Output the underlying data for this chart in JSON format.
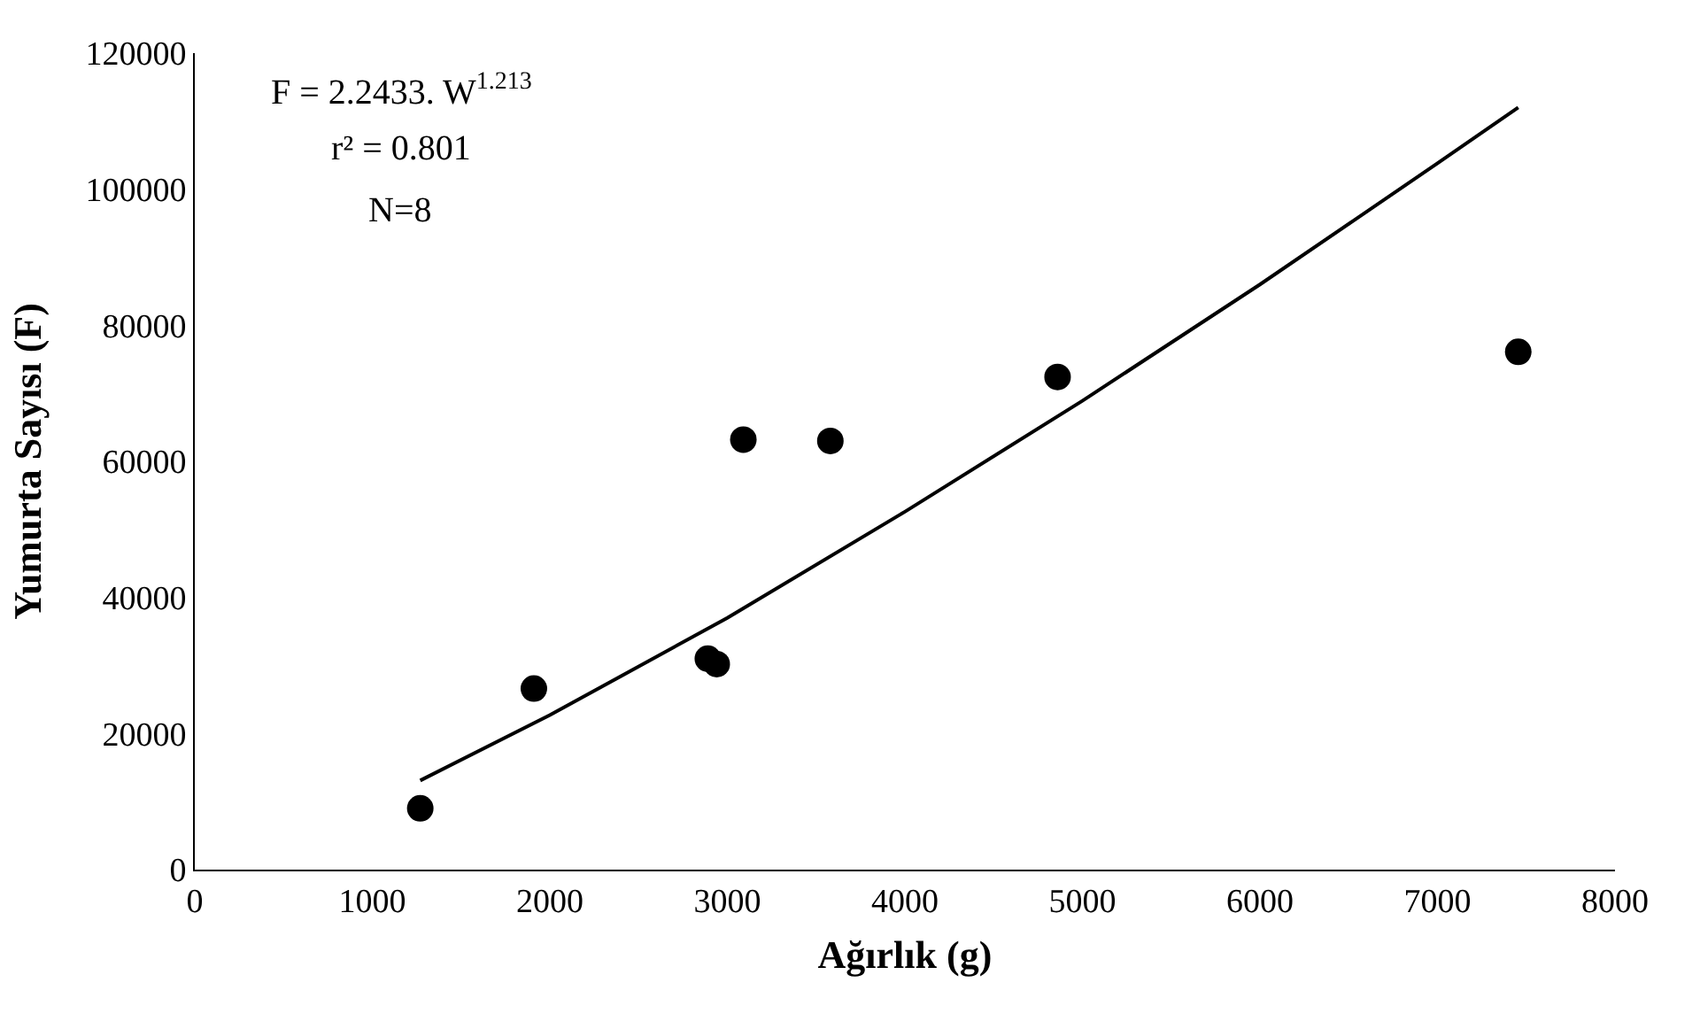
{
  "chart_data": {
    "type": "scatter",
    "xlabel": "Ağırlık (g)",
    "ylabel": "Yumurta Sayısı (F)",
    "xlim": [
      0,
      8000
    ],
    "xticks": [
      0,
      1000,
      2000,
      3000,
      4000,
      5000,
      6000,
      7000,
      8000
    ],
    "ylim": [
      0,
      120000
    ],
    "yticks": [
      0,
      20000,
      40000,
      60000,
      80000,
      100000,
      120000
    ],
    "grid": false,
    "marker": "circle",
    "series": [
      {
        "color": "#000000",
        "x": [
          1270,
          1910,
          2890,
          2940,
          3090,
          3580,
          4860,
          7455
        ],
        "values": [
          9000,
          26600,
          31000,
          30200,
          63200,
          63000,
          72400,
          76100
        ]
      },
      {
        "type": "line",
        "color": "#000000",
        "marker": "none",
        "x": [
          1270,
          2000,
          3000,
          4000,
          5000,
          6000,
          7000,
          7455
        ],
        "values": [
          13100,
          22700,
          37000,
          52600,
          68900,
          86000,
          103800,
          112000
        ]
      }
    ],
    "annotations": [
      "F = 2.2433. W$^{1.213}$",
      "r² = 0.801",
      "N=8"
    ]
  }
}
